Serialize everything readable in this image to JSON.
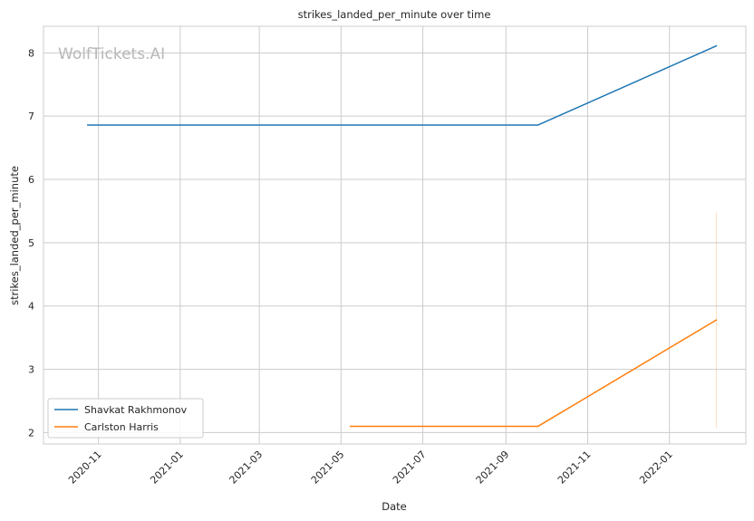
{
  "watermark": "WolfTickets.AI",
  "chart_data": {
    "type": "line",
    "title": "strikes_landed_per_minute over time",
    "xlabel": "Date",
    "ylabel": "strikes_landed_per_minute",
    "x_type": "date",
    "xlim": [
      "2020-09-21",
      "2022-02-27"
    ],
    "ylim": [
      1.82,
      8.42
    ],
    "x_ticks": [
      "2020-11-01",
      "2021-01-01",
      "2021-03-01",
      "2021-05-01",
      "2021-07-01",
      "2021-09-01",
      "2021-11-01",
      "2022-01-01"
    ],
    "x_tick_labels": [
      "2020-11",
      "2021-01",
      "2021-03",
      "2021-05",
      "2021-07",
      "2021-09",
      "2021-11",
      "2022-01"
    ],
    "y_ticks": [
      2,
      3,
      4,
      5,
      6,
      7,
      8
    ],
    "grid": true,
    "legend_position": "lower-left",
    "series": [
      {
        "name": "Shavkat Rakhmonov",
        "color": "#1f77b4",
        "points": [
          {
            "x": "2020-10-24",
            "y": 6.86
          },
          {
            "x": "2021-09-25",
            "y": 6.86
          },
          {
            "x": "2022-02-05",
            "y": 8.11
          }
        ]
      },
      {
        "name": "Carlston Harris",
        "color": "#ff7f0e",
        "points": [
          {
            "x": "2021-05-08",
            "y": 2.1
          },
          {
            "x": "2021-09-25",
            "y": 2.1
          },
          {
            "x": "2022-02-05",
            "y": 3.78
          }
        ],
        "error_bar": {
          "x": "2022-02-05",
          "low": 2.07,
          "high": 5.48
        }
      }
    ]
  }
}
